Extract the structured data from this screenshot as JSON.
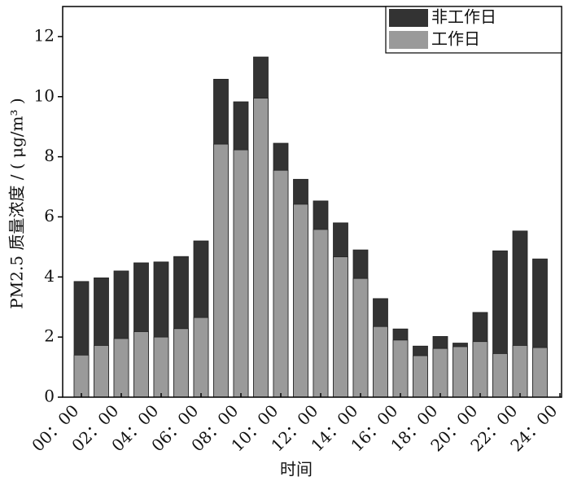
{
  "chart_data": {
    "type": "bar",
    "x_label": "时间",
    "y_label": "PM2.5 质量浓度 / ( μg/m³ )",
    "categories": [
      "00：00",
      null,
      "02：00",
      null,
      "04：00",
      null,
      "06：00",
      null,
      "08：00",
      null,
      "10：00",
      null,
      "12：00",
      null,
      "14：00",
      null,
      "16：00",
      null,
      "18：00",
      null,
      "20：00",
      null,
      "22：00",
      null,
      "24：00"
    ],
    "series": [
      {
        "name": "非工作日",
        "color": "#333333",
        "values": [
          3.85,
          3.97,
          4.2,
          4.47,
          4.5,
          4.68,
          5.2,
          10.58,
          9.83,
          11.32,
          8.45,
          7.25,
          6.53,
          5.8,
          4.9,
          3.28,
          2.27,
          1.7,
          2.02,
          1.8,
          2.82,
          4.87,
          5.53,
          4.6,
          null
        ]
      },
      {
        "name": "工作日",
        "color": "#9a9a9a",
        "values": [
          1.4,
          1.72,
          1.95,
          2.18,
          2.0,
          2.28,
          2.65,
          8.42,
          8.23,
          9.95,
          7.55,
          6.42,
          5.58,
          4.67,
          3.95,
          2.35,
          1.9,
          1.38,
          1.62,
          1.68,
          1.85,
          1.45,
          1.72,
          1.65,
          null
        ]
      }
    ],
    "ylim": [
      0,
      13
    ],
    "yticks": [
      0,
      2,
      4,
      6,
      8,
      10,
      12
    ],
    "legend": "upper right"
  }
}
